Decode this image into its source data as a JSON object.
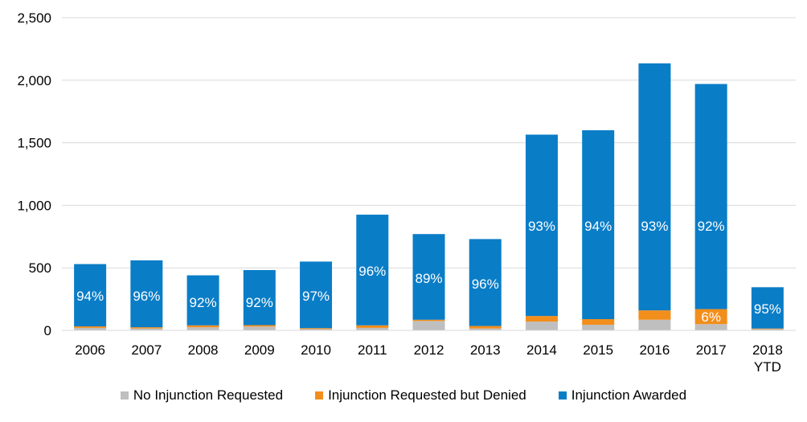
{
  "chart_data": {
    "type": "bar",
    "stacked": true,
    "title": "",
    "xlabel": "",
    "ylabel": "",
    "ylim": [
      0,
      2500
    ],
    "yticks": [
      0,
      500,
      1000,
      1500,
      2000,
      2500
    ],
    "ytick_labels": [
      "0",
      "500",
      "1,000",
      "1,500",
      "2,000",
      "2,500"
    ],
    "grid": "horizontal",
    "legend_position": "bottom",
    "categories": [
      "2006",
      "2007",
      "2008",
      "2009",
      "2010",
      "2011",
      "2012",
      "2013",
      "2014",
      "2015",
      "2016",
      "2017",
      "2018\nYTD"
    ],
    "series": [
      {
        "name": "No Injunction Requested",
        "color": "#bfbfbf",
        "values": [
          20,
          15,
          25,
          30,
          10,
          20,
          75,
          15,
          70,
          45,
          85,
          50,
          10
        ]
      },
      {
        "name": "Injunction Requested but Denied",
        "color": "#f28e1c",
        "values": [
          12,
          10,
          15,
          12,
          8,
          20,
          10,
          20,
          45,
          45,
          75,
          120,
          5
        ]
      },
      {
        "name": "Injunction Awarded",
        "color": "#0a7dc7",
        "values": [
          498,
          535,
          400,
          440,
          532,
          885,
          685,
          695,
          1450,
          1510,
          1975,
          1800,
          330
        ]
      }
    ],
    "annotations": [
      {
        "category": "2006",
        "series": "Injunction Awarded",
        "text": "94%"
      },
      {
        "category": "2007",
        "series": "Injunction Awarded",
        "text": "96%"
      },
      {
        "category": "2008",
        "series": "Injunction Awarded",
        "text": "92%"
      },
      {
        "category": "2009",
        "series": "Injunction Awarded",
        "text": "92%"
      },
      {
        "category": "2010",
        "series": "Injunction Awarded",
        "text": "97%"
      },
      {
        "category": "2011",
        "series": "Injunction Awarded",
        "text": "96%"
      },
      {
        "category": "2012",
        "series": "Injunction Awarded",
        "text": "89%"
      },
      {
        "category": "2013",
        "series": "Injunction Awarded",
        "text": "96%"
      },
      {
        "category": "2014",
        "series": "Injunction Awarded",
        "text": "93%"
      },
      {
        "category": "2015",
        "series": "Injunction Awarded",
        "text": "94%"
      },
      {
        "category": "2016",
        "series": "Injunction Awarded",
        "text": "93%"
      },
      {
        "category": "2017",
        "series": "Injunction Awarded",
        "text": "92%"
      },
      {
        "category": "2017",
        "series": "Injunction Requested but Denied",
        "text": "6%"
      },
      {
        "category": "2018\nYTD",
        "series": "Injunction Awarded",
        "text": "95%"
      }
    ]
  }
}
